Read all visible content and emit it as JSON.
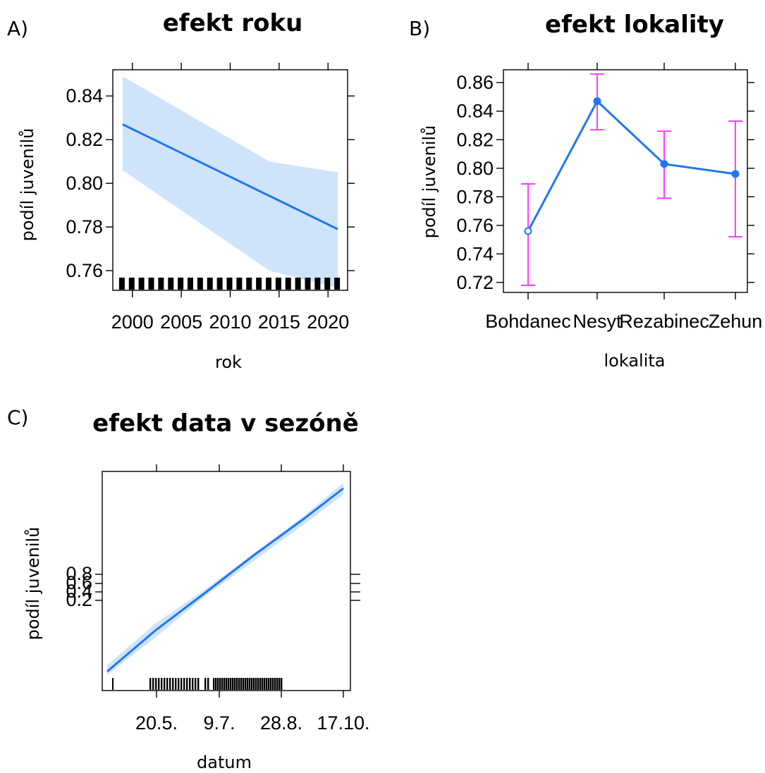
{
  "figure": {
    "panel_labels": [
      "A)",
      "B)",
      "C)"
    ]
  },
  "colors": {
    "line": "#1f77f0",
    "band": "#cfe4fb",
    "errorbar": "#ff3cff",
    "frame": "#000000"
  },
  "chart_data": [
    {
      "type": "line",
      "title": "efekt roku",
      "xlabel": "rok",
      "ylabel": "podíl juvenilů",
      "xlim": [
        1998,
        2022
      ],
      "ylim": [
        0.751,
        0.852
      ],
      "x_ticks": [
        "2000",
        "2005",
        "2010",
        "2015",
        "2020"
      ],
      "y_ticks": [
        "0.76",
        "0.78",
        "0.80",
        "0.82",
        "0.84"
      ],
      "series": [
        {
          "x": [
            1999,
            2021
          ],
          "y": [
            0.827,
            0.779
          ],
          "ci_lower": [
            0.806,
            0.76,
            0.752
          ],
          "ci_upper": [
            0.849,
            0.81,
            0.805
          ],
          "ci_x": [
            1999,
            2014,
            2021
          ]
        }
      ],
      "rug": "dense marks along the bottom, one per observation year",
      "grid": false
    },
    {
      "type": "line",
      "title": "efekt lokality",
      "xlabel": "lokalita",
      "ylabel": "podíl juvenilů",
      "ylim": [
        0.713,
        0.869
      ],
      "categories": [
        "Bohdanec",
        "Nesyt",
        "Rezabinec",
        "Zehun"
      ],
      "y_ticks": [
        "0.72",
        "0.74",
        "0.76",
        "0.78",
        "0.80",
        "0.82",
        "0.84",
        "0.86"
      ],
      "series": [
        {
          "values": [
            0.756,
            0.847,
            0.803,
            0.796
          ],
          "lower": [
            0.718,
            0.827,
            0.779,
            0.752
          ],
          "upper": [
            0.789,
            0.866,
            0.826,
            0.833
          ]
        }
      ],
      "grid": false
    },
    {
      "type": "line",
      "title": "efekt data v sezóně",
      "xlabel": "datum",
      "ylabel": "podíl juvenilů",
      "x_ticks": [
        "20.5.",
        "9.7.",
        "28.8.",
        "17.10."
      ],
      "y_ticks": [
        "0.2",
        "0.4",
        "0.6",
        "0.8"
      ],
      "y_tick_labels_overlapping": true,
      "series": [
        {
          "x": [
            "start",
            "end"
          ],
          "trend": "increasing",
          "note_for_rendering_only": ""
        }
      ],
      "rug": "dense marks between 20.5. and 28.8.",
      "grid": false
    }
  ]
}
